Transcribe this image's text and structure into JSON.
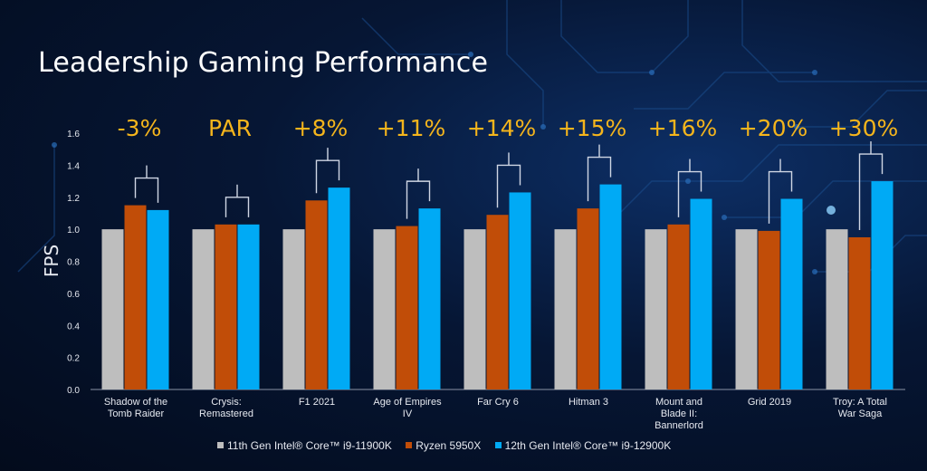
{
  "title": "Leadership Gaming Performance",
  "colors": {
    "intel11": "#bebebe",
    "ryzen": "#c14d08",
    "intel12": "#00aaf5",
    "delta": "#f5b51c"
  },
  "chart_data": {
    "type": "bar",
    "title": "Leadership Gaming Performance",
    "ylabel": "FPS",
    "xlabel": "",
    "ylim": [
      0,
      1.6
    ],
    "yticks": [
      "0.0",
      "0.2",
      "0.4",
      "0.6",
      "0.8",
      "1.0",
      "1.2",
      "1.4",
      "1.6"
    ],
    "categories": [
      [
        "Shadow of the",
        "Tomb Raider"
      ],
      [
        "Crysis:",
        "Remastered"
      ],
      [
        "F1 2021"
      ],
      [
        "Age of Empires",
        "IV"
      ],
      [
        "Far Cry 6"
      ],
      [
        "Hitman 3"
      ],
      [
        "Mount and",
        "Blade II:",
        "Bannerlord"
      ],
      [
        "Grid 2019"
      ],
      [
        "Troy: A Total",
        "War Saga"
      ]
    ],
    "series": [
      {
        "name": "11th Gen Intel® Core™ i9-11900K",
        "values": [
          1.0,
          1.0,
          1.0,
          1.0,
          1.0,
          1.0,
          1.0,
          1.0,
          1.0
        ]
      },
      {
        "name": "Ryzen 5950X",
        "values": [
          1.15,
          1.03,
          1.18,
          1.02,
          1.09,
          1.13,
          1.03,
          0.99,
          0.95
        ]
      },
      {
        "name": "12th Gen Intel® Core™ i9-12900K",
        "values": [
          1.12,
          1.03,
          1.26,
          1.13,
          1.23,
          1.28,
          1.19,
          1.19,
          1.3
        ]
      }
    ],
    "annotations": [
      "-3%",
      "PAR",
      "+8%",
      "+11%",
      "+14%",
      "+15%",
      "+16%",
      "+20%",
      "+30%"
    ],
    "legend": "bottom"
  },
  "legend": {
    "item1": "11th Gen Intel® Core™ i9-11900K",
    "item2": "Ryzen 5950X",
    "item3": "12th Gen Intel® Core™ i9-12900K"
  }
}
